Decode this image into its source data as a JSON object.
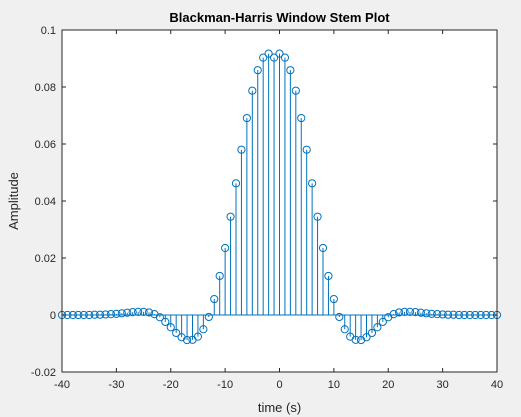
{
  "chart_data": {
    "type": "stem",
    "title": "Blackman-Harris Window Stem Plot",
    "xlabel": "time (s)",
    "ylabel": "Amplitude",
    "xlim": [
      -40,
      40
    ],
    "ylim": [
      -0.02,
      0.1
    ],
    "xticks": [
      "-40",
      "-30",
      "-20",
      "-10",
      "0",
      "10",
      "20",
      "30",
      "40"
    ],
    "yticks": [
      "-0.02",
      "0",
      "0.02",
      "0.04",
      "0.06",
      "0.08",
      "0.1"
    ],
    "grid": false,
    "series_color": "#0072bd",
    "x": [
      -40,
      -39,
      -38,
      -37,
      -36,
      -35,
      -34,
      -33,
      -32,
      -31,
      -30,
      -29,
      -28,
      -27,
      -26,
      -25,
      -24,
      -23,
      -22,
      -21,
      -20,
      -19,
      -18,
      -17,
      -16,
      -15,
      -14,
      -13,
      -12,
      -11,
      -10,
      -9,
      -8,
      -7,
      -6,
      -5,
      -4,
      -3,
      -2,
      -1,
      0,
      1,
      2,
      3,
      4,
      5,
      6,
      7,
      8,
      9,
      10,
      11,
      12,
      13,
      14,
      15,
      16,
      17,
      18,
      19,
      20,
      21,
      22,
      23,
      24,
      25,
      26,
      27,
      28,
      29,
      30,
      31,
      32,
      33,
      34,
      35,
      36,
      37,
      38,
      39,
      40
    ],
    "y": [
      0.0,
      0.0,
      0.0,
      0.0,
      0.0,
      0.0,
      0.0001,
      0.0001,
      0.0002,
      0.0003,
      0.0004,
      0.0006,
      0.0008,
      0.001,
      0.0011,
      0.0011,
      0.0009,
      0.0003,
      -0.0008,
      -0.0024,
      -0.0043,
      -0.0063,
      -0.0078,
      -0.0088,
      -0.0087,
      -0.0076,
      -0.005,
      -0.0007,
      0.0056,
      0.0137,
      0.0235,
      0.0345,
      0.0462,
      0.058,
      0.0691,
      0.0787,
      0.0859,
      0.0903,
      0.0917,
      0.0903,
      0.0917,
      0.0903,
      0.0859,
      0.0787,
      0.0691,
      0.058,
      0.0462,
      0.0345,
      0.0235,
      0.0137,
      0.0056,
      -0.0007,
      -0.005,
      -0.0076,
      -0.0087,
      -0.0088,
      -0.0078,
      -0.0063,
      -0.0043,
      -0.0024,
      -0.0008,
      0.0003,
      0.0009,
      0.0011,
      0.0011,
      0.001,
      0.0008,
      0.0006,
      0.0004,
      0.0003,
      0.0002,
      0.0001,
      0.0001,
      0.0,
      0.0,
      0.0,
      0.0,
      0.0,
      0.0,
      0.0,
      0.0
    ]
  }
}
